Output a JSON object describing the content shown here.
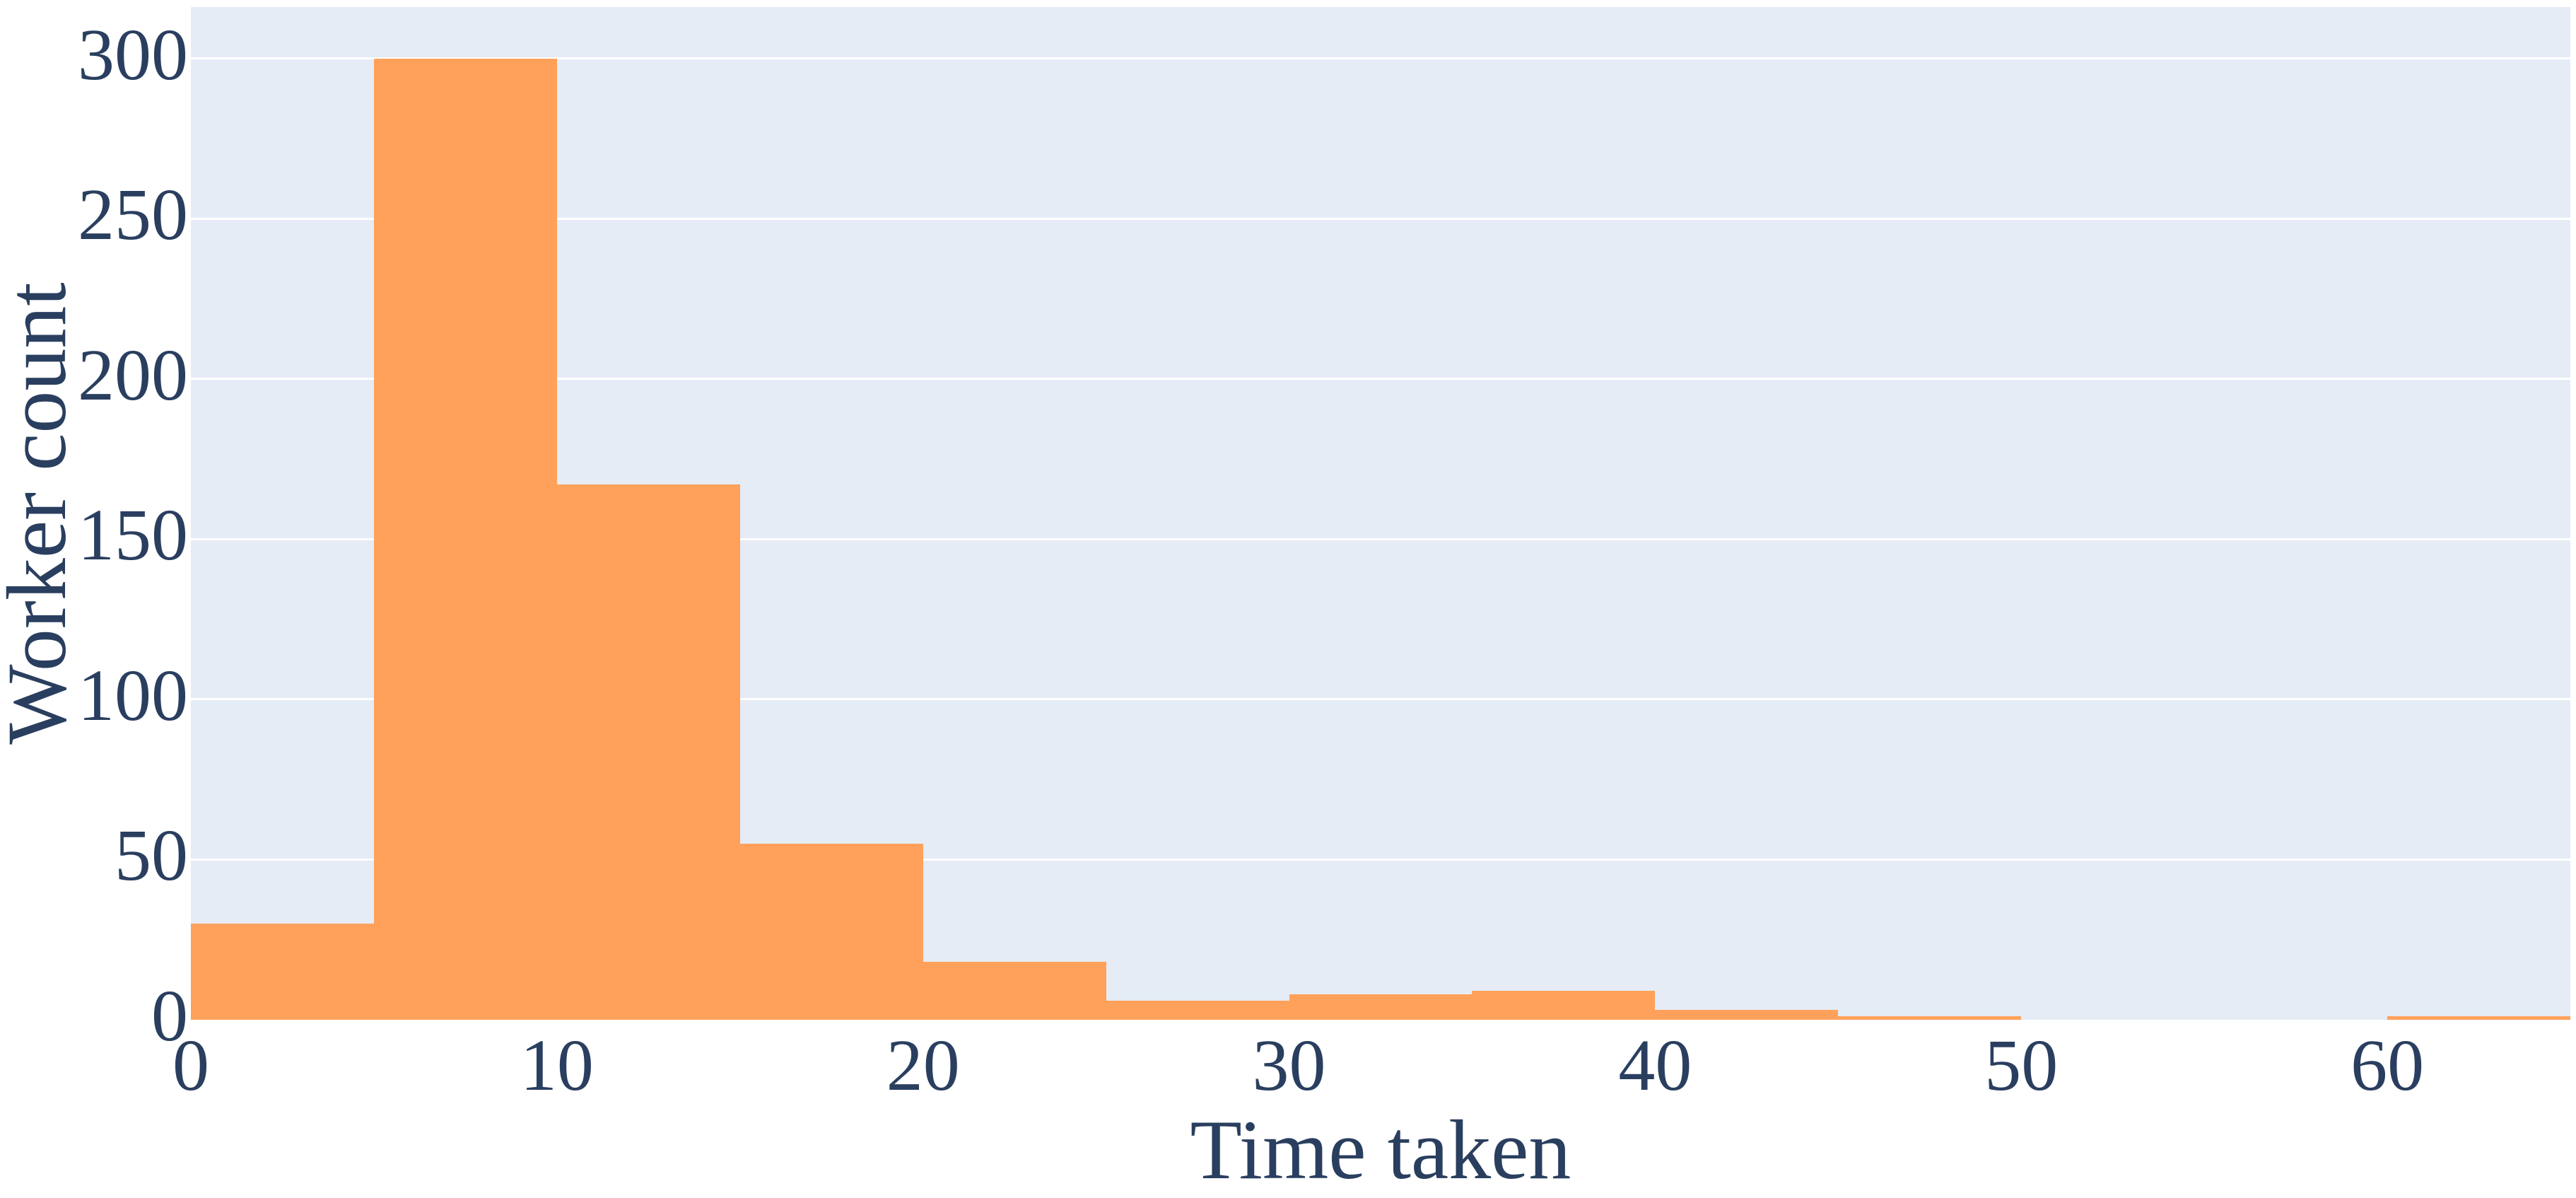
{
  "chart_data": {
    "type": "bar",
    "subtype": "histogram",
    "title": "",
    "xlabel": "Time taken",
    "ylabel": "Worker count",
    "bin_edges": [
      0,
      5,
      10,
      15,
      20,
      25,
      30,
      35,
      40,
      45,
      50,
      55,
      60,
      65
    ],
    "bin_labels": [
      "0-5",
      "5-10",
      "10-15",
      "15-20",
      "20-25",
      "25-30",
      "30-35",
      "35-40",
      "40-45",
      "45-50",
      "50-55",
      "55-60",
      "60-65"
    ],
    "values": [
      30,
      300,
      167,
      55,
      18,
      6,
      8,
      9,
      3,
      1,
      0,
      0,
      1
    ],
    "xlim": [
      0,
      65
    ],
    "ylim": [
      0,
      316
    ],
    "x_ticks": [
      0,
      10,
      20,
      30,
      40,
      50,
      60
    ],
    "y_ticks": [
      0,
      50,
      100,
      150,
      200,
      250,
      300
    ],
    "grid": "horizontal-only",
    "legend": false,
    "colors": {
      "bar": "#FFA15A",
      "plot_background": "#E5ECF6",
      "paper_background": "#FFFFFF",
      "gridline": "#FFFFFF",
      "text": "#2A3F5F"
    }
  }
}
